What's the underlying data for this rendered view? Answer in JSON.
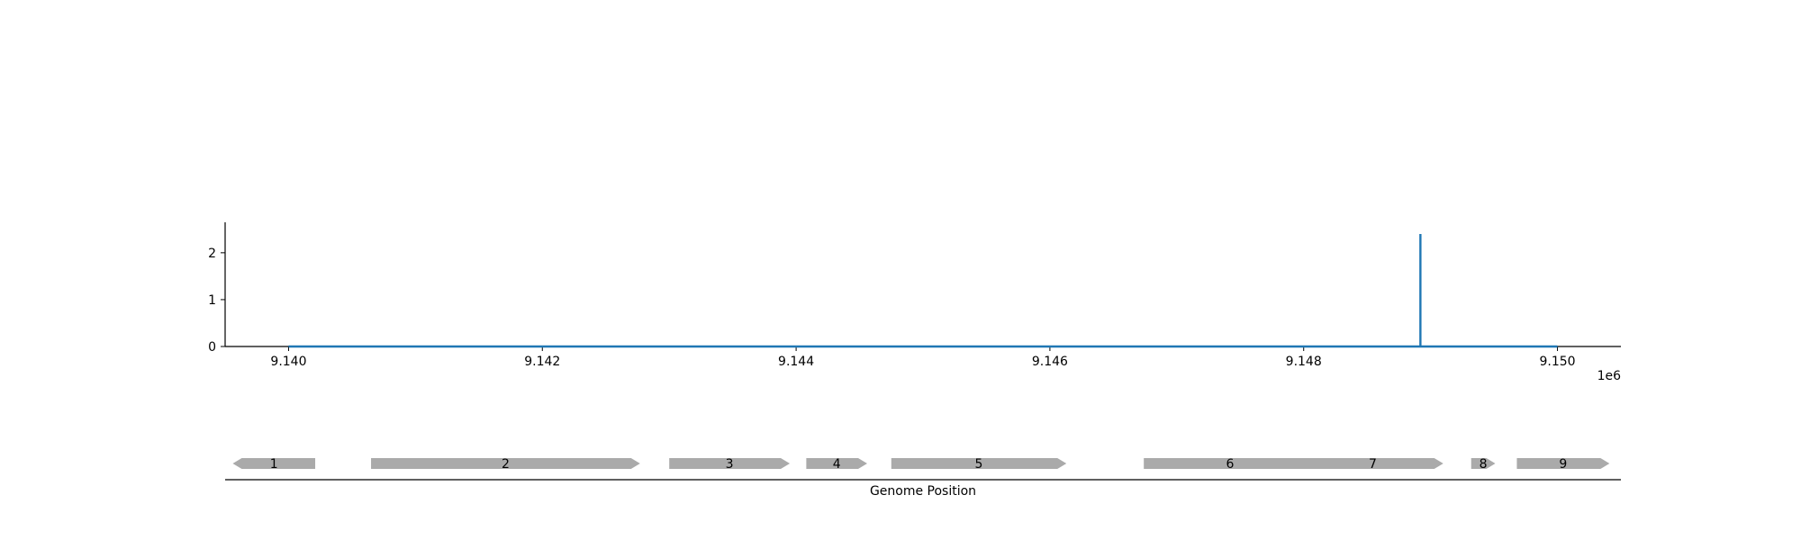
{
  "chart_data": {
    "type": "line",
    "title": "",
    "xlabel": "",
    "ylabel": "",
    "x_offset_label": "1e6",
    "xlim": [
      9.1395,
      9.1505
    ],
    "ylim": [
      0,
      2.65
    ],
    "x_ticks": [
      {
        "value": 9.14,
        "label": "9.140"
      },
      {
        "value": 9.142,
        "label": "9.142"
      },
      {
        "value": 9.144,
        "label": "9.144"
      },
      {
        "value": 9.146,
        "label": "9.146"
      },
      {
        "value": 9.148,
        "label": "9.148"
      },
      {
        "value": 9.15,
        "label": "9.150"
      }
    ],
    "y_ticks": [
      {
        "value": 0,
        "label": "0"
      },
      {
        "value": 1,
        "label": "1"
      },
      {
        "value": 2,
        "label": "2"
      }
    ],
    "grid": false,
    "series": [
      {
        "color": "#1f77b4",
        "x": [
          9.14,
          9.14892,
          9.14892,
          9.14892,
          9.15
        ],
        "y": [
          0,
          0,
          2.4,
          0,
          0
        ]
      }
    ]
  },
  "gene_track": {
    "xlabel": "Genome Position",
    "color": "#aaaaaa",
    "genes": [
      {
        "label": "1",
        "start": 9.13956,
        "end": 9.14021,
        "strand": "-"
      },
      {
        "label": "2",
        "start": 9.14065,
        "end": 9.14277,
        "strand": "+"
      },
      {
        "label": "3",
        "start": 9.143,
        "end": 9.14395,
        "strand": "+"
      },
      {
        "label": "4",
        "start": 9.14408,
        "end": 9.14456,
        "strand": "+"
      },
      {
        "label": "5",
        "start": 9.14475,
        "end": 9.14613,
        "strand": "+"
      },
      {
        "label": "6",
        "start": 9.14674,
        "end": 9.1481,
        "strand": "+"
      },
      {
        "label": "7",
        "start": 9.14799,
        "end": 9.1491,
        "strand": "+"
      },
      {
        "label": "8",
        "start": 9.14932,
        "end": 9.14951,
        "strand": "+"
      },
      {
        "label": "9",
        "start": 9.14968,
        "end": 9.15041,
        "strand": "+"
      }
    ]
  }
}
